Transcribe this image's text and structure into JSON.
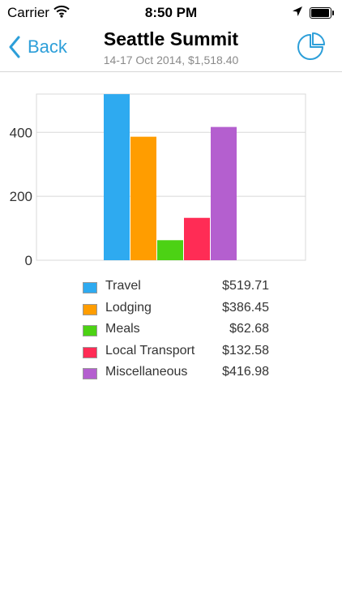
{
  "status_bar": {
    "carrier": "Carrier",
    "time": "8:50 PM"
  },
  "nav": {
    "back_label": "Back",
    "title": "Seattle Summit",
    "subtitle": "14-17 Oct 2014, $1,518.40"
  },
  "colors": {
    "accent": "#2d9fd9"
  },
  "chart_data": {
    "type": "bar",
    "title": "",
    "xlabel": "",
    "ylabel": "",
    "ylim": [
      0,
      520
    ],
    "yticks": [
      0,
      200,
      400
    ],
    "grid": true,
    "legend_position": "bottom",
    "categories": [
      "Travel",
      "Lodging",
      "Meals",
      "Local Transport",
      "Miscellaneous"
    ],
    "values": [
      519.71,
      386.45,
      62.68,
      132.58,
      416.98
    ],
    "colors": [
      "#2eaaf0",
      "#ff9d00",
      "#4cd214",
      "#ff2c55",
      "#b45fcf"
    ]
  },
  "legend": [
    {
      "name": "Travel",
      "value": "$519.71"
    },
    {
      "name": "Lodging",
      "value": "$386.45"
    },
    {
      "name": "Meals",
      "value": "$62.68"
    },
    {
      "name": "Local Transport",
      "value": "$132.58"
    },
    {
      "name": "Miscellaneous",
      "value": "$416.98"
    }
  ]
}
